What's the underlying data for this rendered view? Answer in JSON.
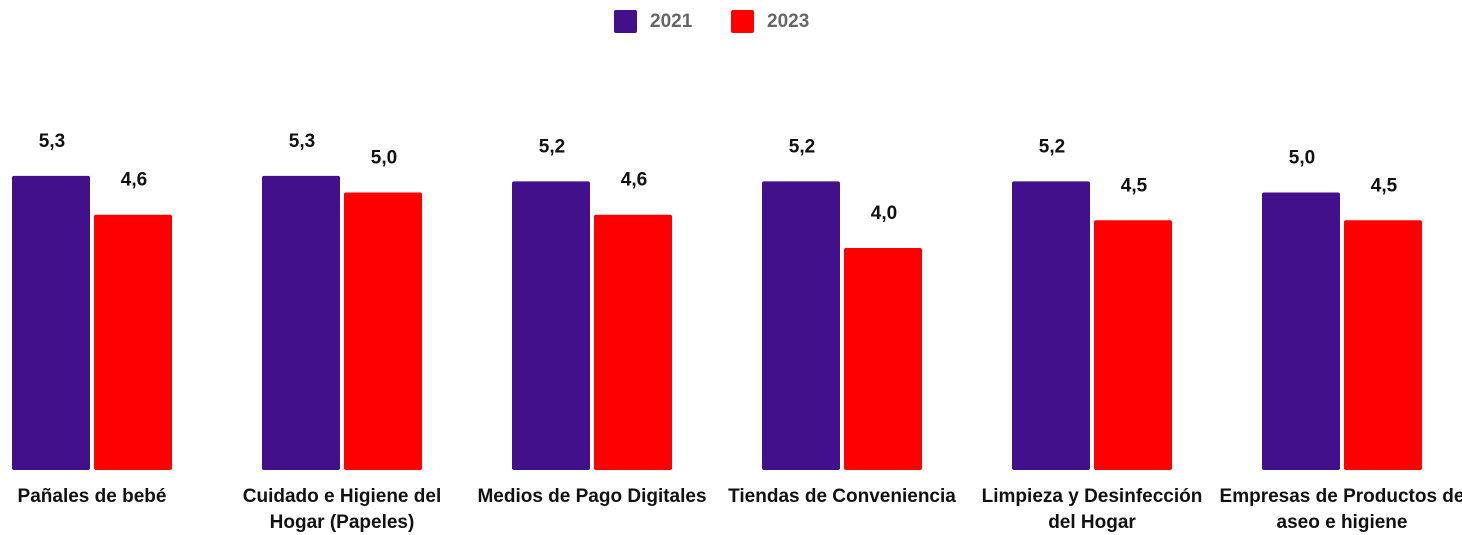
{
  "chart_data": {
    "type": "bar",
    "categories": [
      "Pañales de bebé",
      "Cuidado e Higiene del Hogar (Papeles)",
      "Medios de Pago Digitales",
      "Tiendas de Conveniencia",
      "Limpieza y Desinfección del Hogar",
      "Empresas de Productos de aseo e higiene"
    ],
    "series": [
      {
        "name": "2021",
        "color": "#42108a",
        "values": [
          5.3,
          5.3,
          5.2,
          5.2,
          5.2,
          5.0
        ],
        "value_labels": [
          "5,3",
          "5,3",
          "5,2",
          "5,2",
          "5,2",
          "5,0"
        ]
      },
      {
        "name": "2023",
        "color": "#ff0000",
        "values": [
          4.6,
          5.0,
          4.6,
          4.0,
          4.5,
          4.5
        ],
        "value_labels": [
          "4,6",
          "5,0",
          "4,6",
          "4,0",
          "4,5",
          "4,5"
        ]
      }
    ],
    "ylim": [
      0,
      6
    ],
    "legend": "top"
  }
}
